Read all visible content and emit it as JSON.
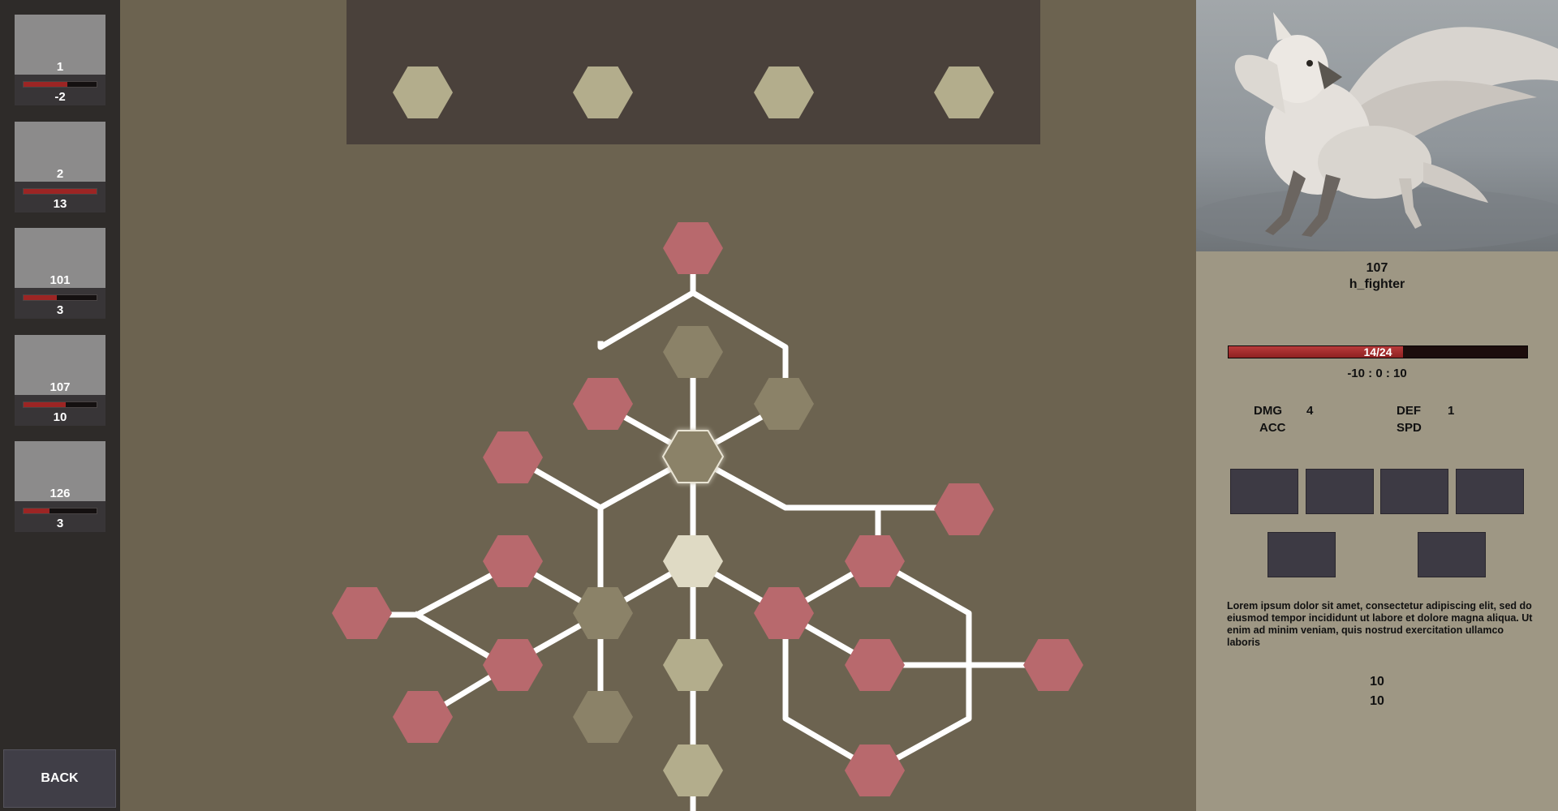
{
  "sidebar": {
    "units": [
      {
        "id": "1",
        "stat": "-2",
        "hp_fraction": 0.6
      },
      {
        "id": "2",
        "stat": "13",
        "hp_fraction": 1.0
      },
      {
        "id": "101",
        "stat": "3",
        "hp_fraction": 0.45
      },
      {
        "id": "107",
        "stat": "10",
        "hp_fraction": 0.58
      },
      {
        "id": "126",
        "stat": "3",
        "hp_fraction": 0.35
      }
    ],
    "back_label": "BACK"
  },
  "top_panel": {
    "slots": [
      {
        "state": "available"
      },
      {
        "state": "available"
      },
      {
        "state": "available"
      },
      {
        "state": "available"
      }
    ]
  },
  "skill_tree": {
    "colors": {
      "locked": "#b8696d",
      "available": "#b3ad8c",
      "unavailable": "#8b8268",
      "selected": "#dfdac4",
      "edge": "#ffffff"
    },
    "nodes": [
      {
        "id": "n1",
        "state": "locked"
      },
      {
        "id": "n2",
        "state": "unavailable"
      },
      {
        "id": "n3",
        "state": "locked"
      },
      {
        "id": "n4",
        "state": "unavailable"
      },
      {
        "id": "n5",
        "state": "locked"
      },
      {
        "id": "n6",
        "state": "unavailable",
        "highlight": true
      },
      {
        "id": "n7",
        "state": "locked"
      },
      {
        "id": "n8",
        "state": "locked"
      },
      {
        "id": "n9",
        "state": "selected"
      },
      {
        "id": "n10",
        "state": "locked"
      },
      {
        "id": "n11",
        "state": "locked"
      },
      {
        "id": "n12",
        "state": "unavailable"
      },
      {
        "id": "n13",
        "state": "locked"
      },
      {
        "id": "n14",
        "state": "locked"
      },
      {
        "id": "n15",
        "state": "available"
      },
      {
        "id": "n16",
        "state": "locked"
      },
      {
        "id": "n17",
        "state": "locked"
      },
      {
        "id": "n18",
        "state": "locked"
      },
      {
        "id": "n19",
        "state": "locked"
      },
      {
        "id": "n20",
        "state": "unavailable"
      },
      {
        "id": "n21",
        "state": "available"
      },
      {
        "id": "n22",
        "state": "locked"
      }
    ]
  },
  "detail": {
    "unit_id": "107",
    "unit_class": "h_fighter",
    "hp_text": "14/24",
    "hp_fraction": 0.583,
    "range_text": "-10 : 0 : 10",
    "stats": {
      "dmg_label": "DMG",
      "dmg_value": "4",
      "acc_label": "ACC",
      "def_label": "DEF",
      "def_value": "1",
      "spd_label": "SPD"
    },
    "description": "Lorem ipsum dolor sit amet, consectetur adipiscing elit, sed do eiusmod tempor incididunt ut labore et dolore magna aliqua. Ut enim ad minim veniam, quis nostrud exercitation ullamco laboris",
    "value1": "10",
    "value2": "10"
  }
}
